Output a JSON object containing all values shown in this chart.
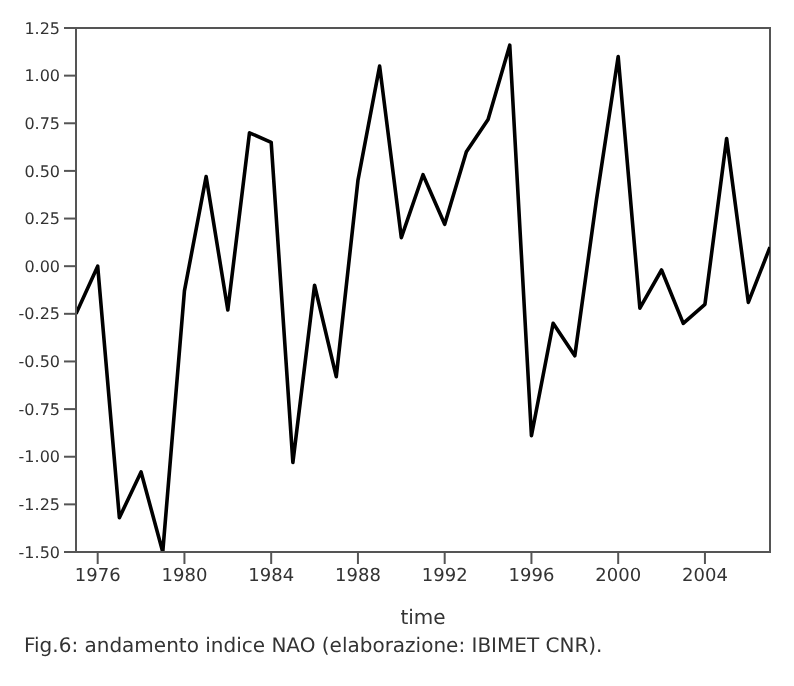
{
  "chart_data": {
    "type": "line",
    "xlabel": "time",
    "annotations": [
      "Fig.6: andamento indice NAO (elaborazione: IBIMET CNR)."
    ],
    "x": [
      1975,
      1976,
      1977,
      1978,
      1979,
      1980,
      1981,
      1982,
      1983,
      1984,
      1985,
      1986,
      1987,
      1988,
      1989,
      1990,
      1991,
      1992,
      1993,
      1994,
      1995,
      1996,
      1997,
      1998,
      1999,
      2000,
      2001,
      2002,
      2003,
      2004,
      2005,
      2006,
      2007
    ],
    "series": [
      {
        "color": "#000000",
        "values": [
          -0.25,
          0.0,
          -1.32,
          -1.08,
          -1.5,
          -0.13,
          0.47,
          -0.23,
          0.7,
          0.65,
          -1.03,
          -0.1,
          -0.58,
          0.45,
          1.05,
          0.15,
          0.48,
          0.22,
          0.6,
          0.77,
          1.16,
          -0.89,
          -0.3,
          -0.47,
          0.35,
          1.1,
          -0.22,
          -0.02,
          -0.3,
          -0.2,
          0.67,
          -0.19,
          0.1
        ]
      }
    ],
    "xlim": [
      1975,
      2007
    ],
    "xticks": [
      1976,
      1980,
      1984,
      1988,
      1992,
      1996,
      2000,
      2004
    ],
    "ylim": [
      -1.5,
      1.25
    ],
    "yticks": [
      {
        "value": -1.5,
        "label": "-1.50"
      },
      {
        "value": -1.25,
        "label": "-1.25"
      },
      {
        "value": -1,
        "label": "-1.00"
      },
      {
        "value": -0.75,
        "label": "-0.75"
      },
      {
        "value": -0.5,
        "label": "-0.50"
      },
      {
        "value": -0.25,
        "label": "-0.25"
      },
      {
        "value": 0,
        "label": "0.00"
      },
      {
        "value": 0.25,
        "label": "0.25"
      },
      {
        "value": 0.5,
        "label": "0.50"
      },
      {
        "value": 0.75,
        "label": "0.75"
      },
      {
        "value": 1,
        "label": "1.00"
      },
      {
        "value": 1.25,
        "label": "1.25"
      }
    ],
    "grid": false,
    "legend": false,
    "marker": "none",
    "line_style": "solid"
  }
}
